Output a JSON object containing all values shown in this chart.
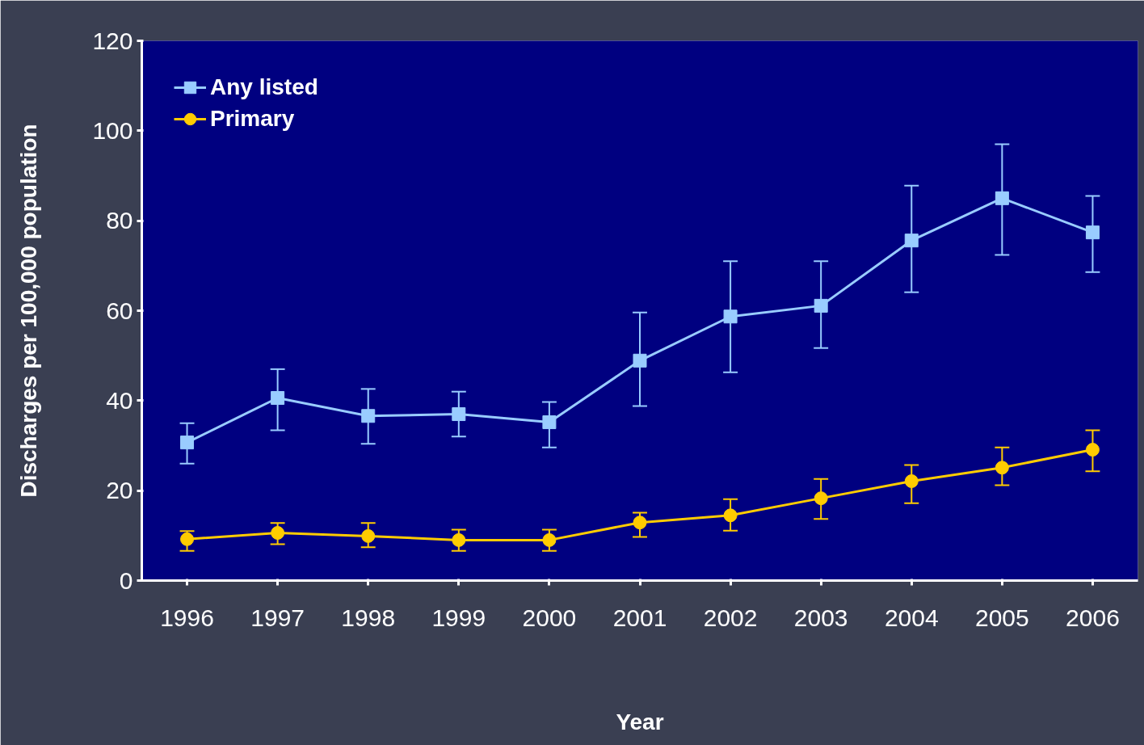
{
  "chart_data": {
    "type": "line",
    "xlabel": "Year",
    "ylabel": "Discharges per 100,000 population",
    "categories": [
      "1996",
      "1997",
      "1998",
      "1999",
      "2000",
      "2001",
      "2002",
      "2003",
      "2004",
      "2005",
      "2006"
    ],
    "series": [
      {
        "name": "Any listed",
        "color": "#99ccff",
        "marker": "square",
        "values": [
          30.7,
          40.6,
          36.6,
          37,
          35.2,
          48.9,
          58.7,
          61.1,
          75.6,
          85,
          77.4
        ],
        "errors": [
          [
            26,
            35
          ],
          [
            33.4,
            47
          ],
          [
            30.4,
            42.6
          ],
          [
            32,
            42
          ],
          [
            29.6,
            39.7
          ],
          [
            38.8,
            59.6
          ],
          [
            46.3,
            71
          ],
          [
            51.7,
            71
          ],
          [
            64.1,
            87.8
          ],
          [
            72.4,
            97
          ],
          [
            68.6,
            85.5
          ]
        ]
      },
      {
        "name": "Primary",
        "color": "#ffcc00",
        "marker": "circle",
        "values": [
          9.2,
          10.6,
          9.9,
          9,
          9,
          12.9,
          14.5,
          18.3,
          22.1,
          25.1,
          29.1
        ],
        "errors": [
          [
            6.6,
            11
          ],
          [
            8.1,
            12.8
          ],
          [
            7.4,
            12.8
          ],
          [
            6.6,
            11.3
          ],
          [
            6.6,
            11.3
          ],
          [
            9.7,
            15.1
          ],
          [
            11.1,
            18.1
          ],
          [
            13.7,
            22.6
          ],
          [
            17.2,
            25.7
          ],
          [
            21.2,
            29.6
          ],
          [
            24.3,
            33.4
          ]
        ]
      }
    ],
    "ylim": [
      0,
      120
    ],
    "yticks": [
      0,
      20,
      40,
      60,
      80,
      100,
      120
    ],
    "grid": false,
    "legend": "top left"
  }
}
